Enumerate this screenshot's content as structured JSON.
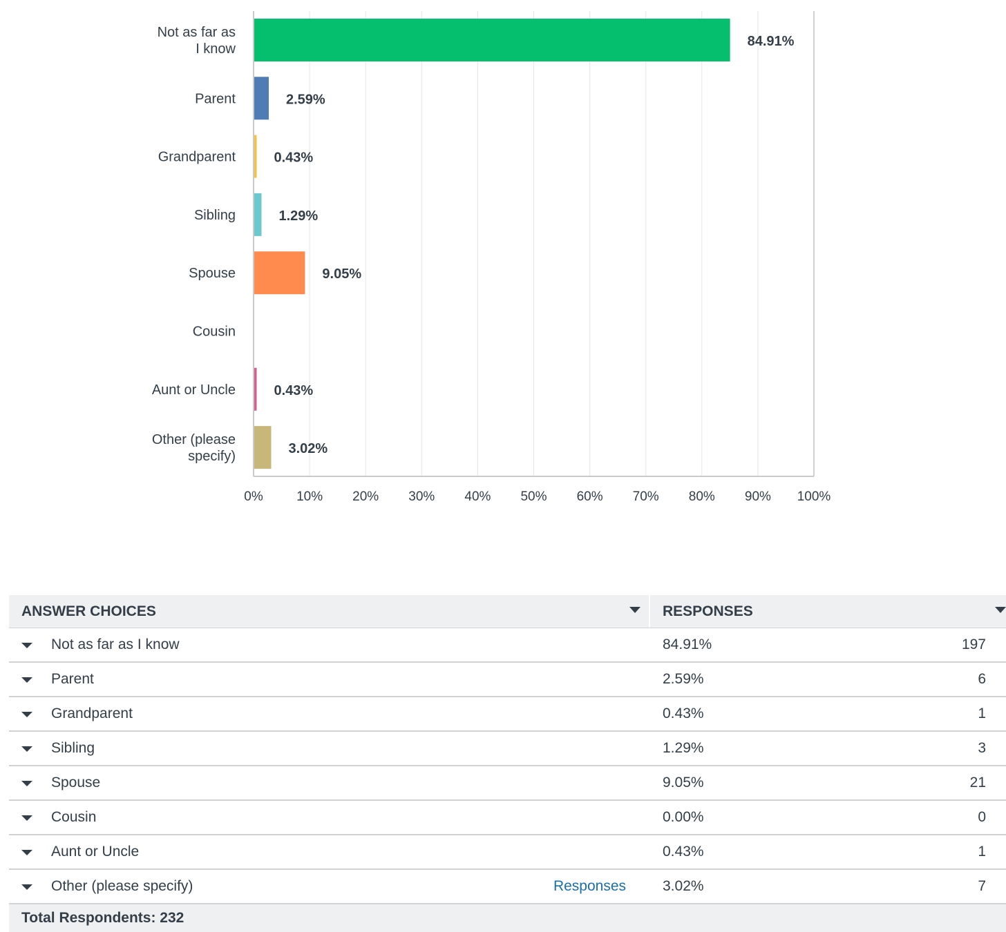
{
  "chart_data": {
    "type": "bar",
    "orientation": "horizontal",
    "categories": [
      [
        "Not as far as",
        "I know"
      ],
      [
        "Parent"
      ],
      [
        "Grandparent"
      ],
      [
        "Sibling"
      ],
      [
        "Spouse"
      ],
      [
        "Cousin"
      ],
      [
        "Aunt or Uncle"
      ],
      [
        "Other (please",
        "specify)"
      ]
    ],
    "values": [
      84.91,
      2.59,
      0.43,
      1.29,
      9.05,
      0.0,
      0.43,
      3.02
    ],
    "value_labels": [
      "84.91%",
      "2.59%",
      "0.43%",
      "1.29%",
      "9.05%",
      "",
      "0.43%",
      "3.02%"
    ],
    "colors": [
      "#05bf6f",
      "#507cb6",
      "#f6c243",
      "#6bc8cd",
      "#ff8b4f",
      "#7d5e90",
      "#d25f90",
      "#c7b879"
    ],
    "xlim": [
      0,
      100
    ],
    "xticks": [
      "0%",
      "10%",
      "20%",
      "30%",
      "40%",
      "50%",
      "60%",
      "70%",
      "80%",
      "90%",
      "100%"
    ],
    "grid": true,
    "title": "",
    "xlabel": "",
    "ylabel": ""
  },
  "table": {
    "headers": {
      "choices": "ANSWER CHOICES",
      "responses": "RESPONSES"
    },
    "rows": [
      {
        "choice": "Not as far as I know",
        "pct": "84.91%",
        "count": "197",
        "link": ""
      },
      {
        "choice": "Parent",
        "pct": "2.59%",
        "count": "6",
        "link": ""
      },
      {
        "choice": "Grandparent",
        "pct": "0.43%",
        "count": "1",
        "link": ""
      },
      {
        "choice": "Sibling",
        "pct": "1.29%",
        "count": "3",
        "link": ""
      },
      {
        "choice": "Spouse",
        "pct": "9.05%",
        "count": "21",
        "link": ""
      },
      {
        "choice": "Cousin",
        "pct": "0.00%",
        "count": "0",
        "link": ""
      },
      {
        "choice": "Aunt or Uncle",
        "pct": "0.43%",
        "count": "1",
        "link": ""
      },
      {
        "choice": "Other (please specify)",
        "pct": "3.02%",
        "count": "7",
        "link": "Responses"
      }
    ],
    "footer": "Total Respondents: 232"
  }
}
